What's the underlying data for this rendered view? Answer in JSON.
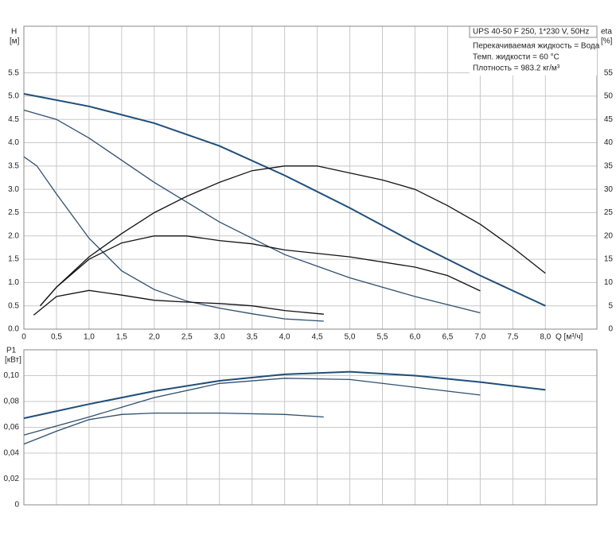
{
  "chart_data": [
    {
      "type": "line",
      "y_label": "H",
      "y_unit": "[м]",
      "y2_label": "eta",
      "y2_unit": "[%]",
      "x_label": "Q [м³/ч]",
      "info": [
        "UPS 40-50 F 250, 1*230 V, 50Hz",
        "Перекачиваемая жидкость = Вода",
        "Темп. жидкости = 60 °C",
        "Плотность = 983.2 кг/м³"
      ],
      "xlim": [
        0,
        8.79
      ],
      "ylim": [
        0,
        6.5
      ],
      "y2lim": [
        0,
        65
      ],
      "grid": true,
      "xticks": [
        0,
        {
          "value": 0.5,
          "label": "0,5"
        },
        {
          "value": 1,
          "label": "1,0"
        },
        {
          "value": 1.5,
          "label": "1,5"
        },
        {
          "value": 2,
          "label": "2,0"
        },
        {
          "value": 2.5,
          "label": "2,5"
        },
        {
          "value": 3,
          "label": "3,0"
        },
        {
          "value": 3.5,
          "label": "3,5"
        },
        {
          "value": 4,
          "label": "4,0"
        },
        {
          "value": 4.5,
          "label": "4,5"
        },
        {
          "value": 5,
          "label": "5,0"
        },
        {
          "value": 5.5,
          "label": "5,5"
        },
        {
          "value": 6,
          "label": "6,0"
        },
        {
          "value": 6.5,
          "label": "6,5"
        },
        {
          "value": 7,
          "label": "7,0"
        },
        {
          "value": 7.5,
          "label": "7,5"
        },
        {
          "value": 8,
          "label": "8,0"
        }
      ],
      "yticks": [
        {
          "value": 0,
          "label": "0.0"
        },
        0.5,
        {
          "value": 1,
          "label": "1.0"
        },
        1.5,
        {
          "value": 2,
          "label": "2.0"
        },
        2.5,
        {
          "value": 3,
          "label": "3.0"
        },
        3.5,
        {
          "value": 4,
          "label": "4.0"
        },
        4.5,
        {
          "value": 5,
          "label": "5.0"
        },
        5.5
      ],
      "y2ticks": [
        0,
        5,
        10,
        15,
        20,
        25,
        30,
        35,
        40,
        45,
        50,
        55
      ],
      "series": [
        {
          "color": "#1f4e79",
          "x": [
            0,
            1,
            2,
            3,
            4,
            5,
            6,
            7,
            8
          ],
          "values": [
            5.05,
            4.78,
            4.42,
            3.93,
            3.3,
            2.6,
            1.85,
            1.15,
            0.5
          ]
        },
        {
          "color": "#2e4f6e",
          "x": [
            0,
            0.5,
            1,
            2,
            3,
            4,
            5,
            6,
            7
          ],
          "values": [
            4.7,
            4.5,
            4.1,
            3.15,
            2.3,
            1.6,
            1.1,
            0.7,
            0.35
          ]
        },
        {
          "color": "#2e4f6e",
          "x": [
            0,
            0.2,
            0.5,
            1,
            1.5,
            2,
            2.5,
            3,
            3.5,
            4,
            4.6
          ],
          "values": [
            3.7,
            3.5,
            2.9,
            1.95,
            1.25,
            0.85,
            0.6,
            0.45,
            0.33,
            0.22,
            0.17
          ]
        },
        {
          "color": "#111111",
          "axis": "y2",
          "x": [
            0.25,
            0.5,
            1,
            1.5,
            2,
            2.5,
            3,
            3.5,
            4,
            4.5,
            5,
            5.5,
            6,
            6.5,
            7,
            7.5,
            8
          ],
          "values": [
            5,
            9,
            15.5,
            20.5,
            25,
            28.5,
            31.5,
            34,
            35,
            35,
            33.5,
            32,
            30,
            26.5,
            22.5,
            17.5,
            12
          ]
        },
        {
          "color": "#111111",
          "axis": "y2",
          "x": [
            0.25,
            0.5,
            1,
            1.5,
            2,
            2.5,
            3,
            3.5,
            4,
            5,
            6,
            6.5,
            7
          ],
          "values": [
            5,
            9,
            15,
            18.5,
            20,
            20,
            19,
            18.3,
            17,
            15.5,
            13.3,
            11.5,
            8.2
          ]
        },
        {
          "color": "#111111",
          "axis": "y2",
          "x": [
            0.15,
            0.5,
            1,
            1.5,
            2,
            2.5,
            3,
            3.5,
            4,
            4.6
          ],
          "values": [
            3,
            7,
            8.3,
            7.3,
            6.2,
            5.8,
            5.5,
            5,
            4,
            3.2
          ]
        }
      ]
    },
    {
      "type": "line",
      "y_label": "P1",
      "y_unit": "[кВт]",
      "xlim": [
        0,
        8.79
      ],
      "ylim": [
        0,
        0.12
      ],
      "grid": true,
      "xticks": [
        0,
        0.5,
        1,
        1.5,
        2,
        2.5,
        3,
        3.5,
        4,
        4.5,
        5,
        5.5,
        6,
        6.5,
        7,
        7.5,
        8
      ],
      "yticks": [
        0,
        {
          "value": 0.02,
          "label": "0,02"
        },
        {
          "value": 0.04,
          "label": "0,04"
        },
        {
          "value": 0.06,
          "label": "0,06"
        },
        {
          "value": 0.08,
          "label": "0,08"
        },
        {
          "value": 0.1,
          "label": "0,10"
        }
      ],
      "series": [
        {
          "color": "#1f4e79",
          "x": [
            0,
            1,
            2,
            3,
            4,
            5,
            6,
            7,
            8
          ],
          "values": [
            0.067,
            0.078,
            0.088,
            0.096,
            0.101,
            0.103,
            0.1,
            0.095,
            0.089
          ]
        },
        {
          "color": "#2e4f6e",
          "x": [
            0,
            1,
            2,
            3,
            4,
            5,
            6,
            7
          ],
          "values": [
            0.054,
            0.068,
            0.083,
            0.094,
            0.098,
            0.097,
            0.091,
            0.085
          ]
        },
        {
          "color": "#2e4f6e",
          "x": [
            0,
            0.5,
            1,
            1.5,
            2,
            3,
            4,
            4.6
          ],
          "values": [
            0.047,
            0.057,
            0.066,
            0.07,
            0.071,
            0.071,
            0.07,
            0.068
          ]
        }
      ]
    }
  ]
}
